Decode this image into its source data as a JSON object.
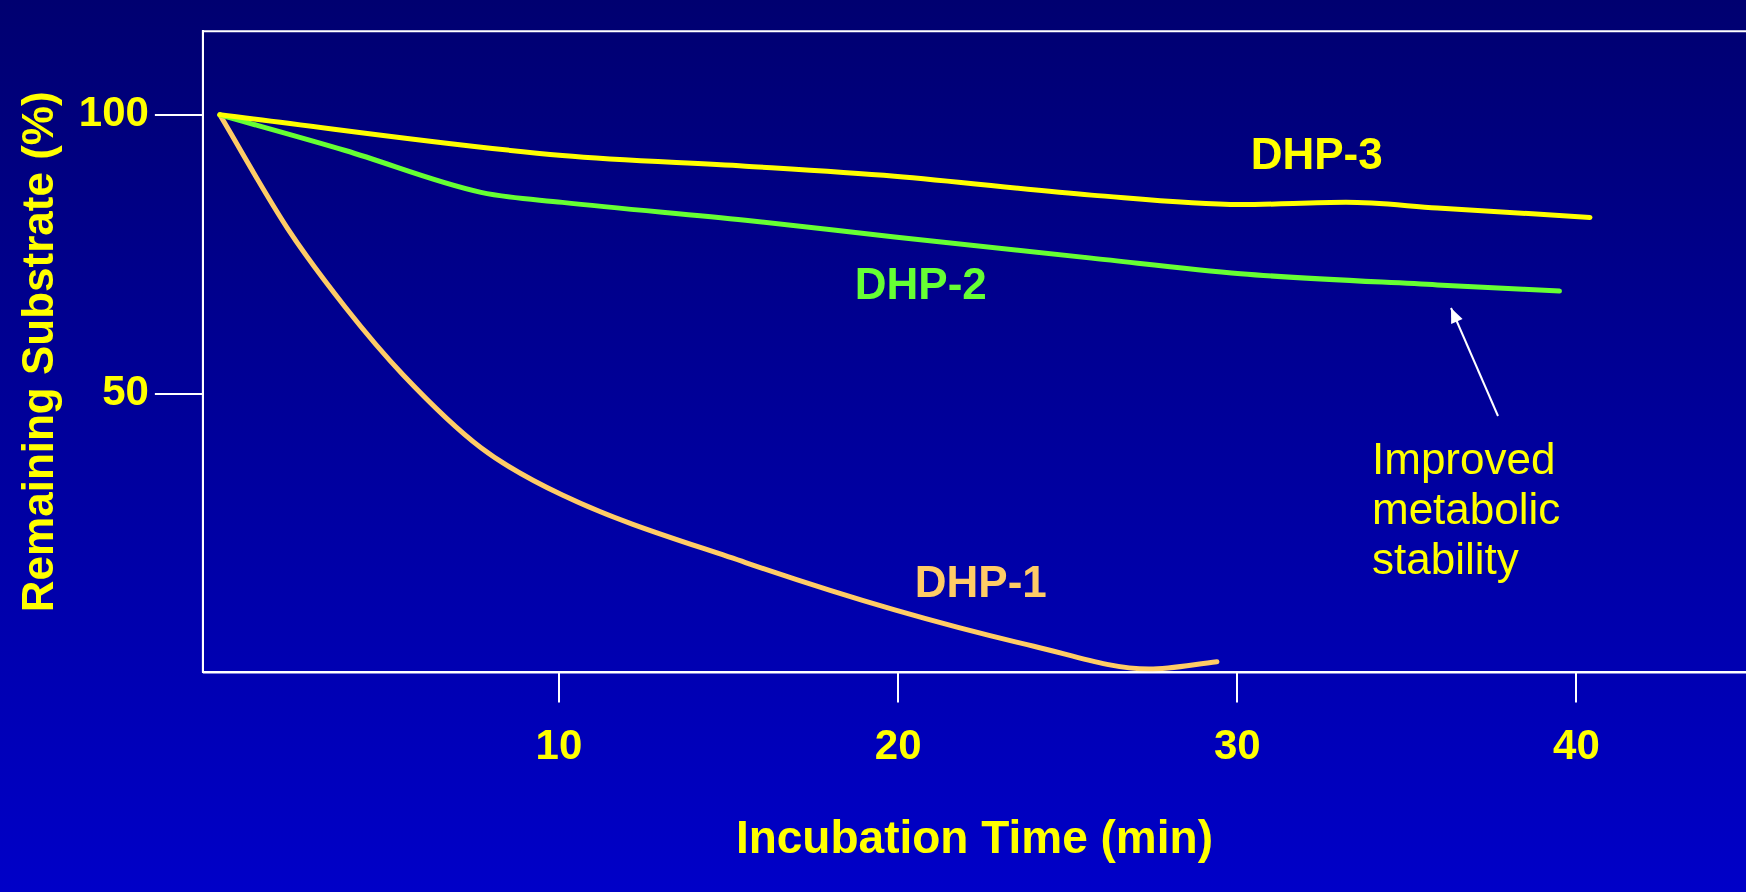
{
  "chart_data": {
    "type": "line",
    "xlabel": "Incubation Time (min)",
    "ylabel": "Remaining Substrate (%)",
    "xlim": [
      -0.5,
      45
    ],
    "xticks": [
      10,
      20,
      30,
      40
    ],
    "ylim": [
      0,
      115
    ],
    "yticks": [
      50,
      100
    ],
    "grid": false,
    "legend": false,
    "marker": "none",
    "line_style": "solid",
    "series": [
      {
        "name": "DHP-3",
        "color": "#ffff00",
        "x": [
          0,
          10.1,
          15.5,
          19.9,
          25.7,
          30.1,
          33.2,
          35.9,
          40.4
        ],
        "values": [
          100,
          92.7,
          90.8,
          89,
          85.6,
          83.9,
          84.3,
          83.3,
          81.6
        ]
      },
      {
        "name": "DHP-2",
        "color": "#66ff33",
        "x": [
          0,
          3.7,
          7.7,
          10.1,
          15.5,
          19.9,
          25.7,
          30.1,
          35.9,
          39.5
        ],
        "values": [
          100,
          93.6,
          86.1,
          84.3,
          81.1,
          78.1,
          74.3,
          71.5,
          69.5,
          68.4
        ]
      },
      {
        "name": "DHP-1",
        "color": "#ffcc66",
        "x": [
          0,
          2,
          3.7,
          5.4,
          7.7,
          10.1,
          15.5,
          19.9,
          24,
          27.4,
          29.4
        ],
        "values": [
          100,
          79.6,
          65.5,
          53.4,
          40.3,
          31.8,
          19.7,
          11.2,
          4.7,
          0.6,
          1.9
        ]
      }
    ],
    "annotations": [
      "Improved metabolic stability"
    ]
  }
}
